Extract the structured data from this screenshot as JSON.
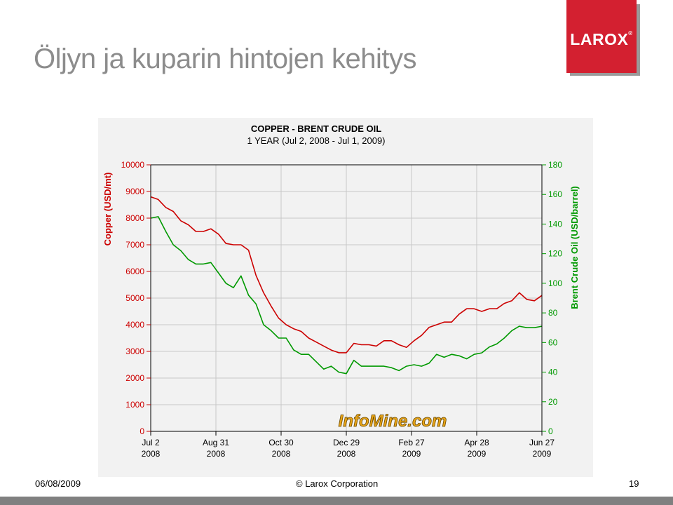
{
  "slide": {
    "title": "Öljyn ja kuparin hintojen kehitys",
    "logo_text": "LAROX",
    "logo_reg": "®",
    "footer_date": "06/08/2009",
    "footer_copyright": "© Larox Corporation",
    "page_number": "19"
  },
  "colors": {
    "logo_bg": "#d32030",
    "copper_series": "#cc0000",
    "oil_series": "#009900",
    "watermark": "#e8a417"
  },
  "watermark": "InfoMine.com",
  "chart_data": {
    "type": "line",
    "title": "COPPER - BRENT CRUDE OIL",
    "subtitle": "1 YEAR (Jul 2, 2008 - Jul 1, 2009)",
    "ylabel_left": "Copper (USD/mt)",
    "ylabel_right": "Brent Crude Oil (USD/barrel)",
    "ylim_left": [
      0,
      10000
    ],
    "ylim_right": [
      0,
      180
    ],
    "yticks_left": [
      "0",
      "1000",
      "2000",
      "3000",
      "4000",
      "5000",
      "6000",
      "7000",
      "8000",
      "9000",
      "10000"
    ],
    "yticks_right": [
      "0",
      "20",
      "40",
      "60",
      "80",
      "100",
      "120",
      "140",
      "160",
      "180"
    ],
    "x_tick_labels": [
      {
        "date": "Jul 2",
        "year": "2008"
      },
      {
        "date": "Aug 31",
        "year": "2008"
      },
      {
        "date": "Oct 30",
        "year": "2008"
      },
      {
        "date": "Dec 29",
        "year": "2008"
      },
      {
        "date": "Feb 27",
        "year": "2009"
      },
      {
        "date": "Apr 28",
        "year": "2009"
      },
      {
        "date": "Jun 27",
        "year": "2009"
      }
    ],
    "grid": true,
    "series": [
      {
        "name": "Copper",
        "axis": "left",
        "x": [
          "2008-07-02",
          "2008-07-09",
          "2008-07-16",
          "2008-07-23",
          "2008-07-30",
          "2008-08-06",
          "2008-08-13",
          "2008-08-20",
          "2008-08-27",
          "2008-09-03",
          "2008-09-10",
          "2008-09-17",
          "2008-09-24",
          "2008-10-01",
          "2008-10-08",
          "2008-10-15",
          "2008-10-22",
          "2008-10-29",
          "2008-11-05",
          "2008-11-12",
          "2008-11-19",
          "2008-11-26",
          "2008-12-03",
          "2008-12-10",
          "2008-12-17",
          "2008-12-24",
          "2008-12-31",
          "2009-01-07",
          "2009-01-14",
          "2009-01-21",
          "2009-01-28",
          "2009-02-04",
          "2009-02-11",
          "2009-02-18",
          "2009-02-25",
          "2009-03-04",
          "2009-03-11",
          "2009-03-18",
          "2009-03-25",
          "2009-04-01",
          "2009-04-08",
          "2009-04-15",
          "2009-04-22",
          "2009-04-29",
          "2009-05-06",
          "2009-05-13",
          "2009-05-20",
          "2009-05-27",
          "2009-06-03",
          "2009-06-10",
          "2009-06-17",
          "2009-06-24",
          "2009-07-01"
        ],
        "values": [
          8800,
          8700,
          8400,
          8250,
          7900,
          7750,
          7500,
          7500,
          7600,
          7400,
          7050,
          7000,
          7000,
          6800,
          5850,
          5200,
          4700,
          4250,
          4000,
          3850,
          3750,
          3500,
          3350,
          3200,
          3050,
          2950,
          2950,
          3300,
          3250,
          3250,
          3200,
          3400,
          3400,
          3250,
          3150,
          3400,
          3600,
          3900,
          4000,
          4100,
          4100,
          4400,
          4600,
          4600,
          4500,
          4600,
          4600,
          4800,
          4900,
          5200,
          4950,
          4900,
          5100
        ]
      },
      {
        "name": "Brent Crude Oil",
        "axis": "right",
        "x": [
          "2008-07-02",
          "2008-07-09",
          "2008-07-16",
          "2008-07-23",
          "2008-07-30",
          "2008-08-06",
          "2008-08-13",
          "2008-08-20",
          "2008-08-27",
          "2008-09-03",
          "2008-09-10",
          "2008-09-17",
          "2008-09-24",
          "2008-10-01",
          "2008-10-08",
          "2008-10-15",
          "2008-10-22",
          "2008-10-29",
          "2008-11-05",
          "2008-11-12",
          "2008-11-19",
          "2008-11-26",
          "2008-12-03",
          "2008-12-10",
          "2008-12-17",
          "2008-12-24",
          "2008-12-31",
          "2009-01-07",
          "2009-01-14",
          "2009-01-21",
          "2009-01-28",
          "2009-02-04",
          "2009-02-11",
          "2009-02-18",
          "2009-02-25",
          "2009-03-04",
          "2009-03-11",
          "2009-03-18",
          "2009-03-25",
          "2009-04-01",
          "2009-04-08",
          "2009-04-15",
          "2009-04-22",
          "2009-04-29",
          "2009-05-06",
          "2009-05-13",
          "2009-05-20",
          "2009-05-27",
          "2009-06-03",
          "2009-06-10",
          "2009-06-17",
          "2009-06-24",
          "2009-07-01"
        ],
        "values": [
          144,
          145,
          135,
          126,
          122,
          116,
          113,
          113,
          114,
          107,
          100,
          97,
          105,
          92,
          86,
          72,
          68,
          63,
          63,
          55,
          52,
          52,
          47,
          42,
          44,
          40,
          39,
          48,
          44,
          44,
          44,
          44,
          43,
          41,
          44,
          45,
          44,
          46,
          52,
          50,
          52,
          51,
          49,
          52,
          53,
          57,
          59,
          63,
          68,
          71,
          70,
          70,
          71
        ]
      }
    ]
  }
}
